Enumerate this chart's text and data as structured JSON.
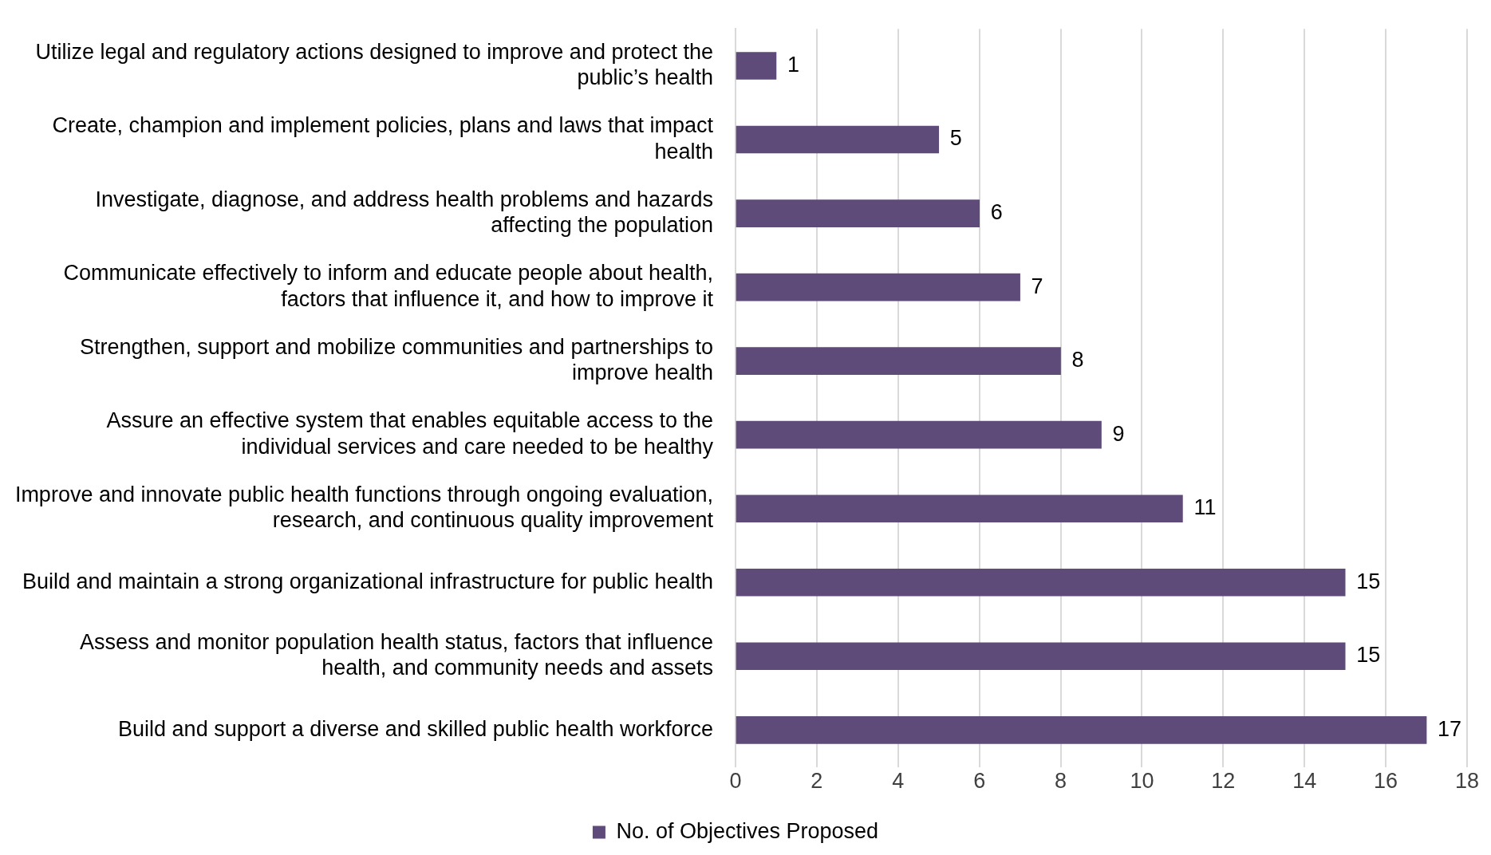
{
  "chart_data": {
    "type": "bar",
    "orientation": "horizontal",
    "categories": [
      "Utilize legal and regulatory actions designed to improve and protect the public’s health",
      "Create, champion and implement policies, plans and laws that impact health",
      "Investigate, diagnose, and address health problems and hazards affecting the population",
      "Communicate effectively to inform and educate people about health, factors that influence it, and how to improve it",
      "Strengthen, support and mobilize communities and partnerships to improve health",
      "Assure an effective system that enables equitable access to the individual services and care needed to be healthy",
      "Improve and innovate public health functions through ongoing evaluation, research, and continuous quality improvement",
      "Build and maintain a strong organizational infrastructure for public health",
      "Assess and monitor population health status, factors that influence health, and community needs and assets",
      "Build and support a diverse and skilled public health workforce"
    ],
    "series": [
      {
        "name": "No. of Objectives Proposed",
        "color": "#5f4b7a",
        "values": [
          1,
          5,
          6,
          7,
          8,
          9,
          11,
          15,
          15,
          17
        ]
      }
    ],
    "xlim": [
      0,
      18
    ],
    "xticks": [
      0,
      2,
      4,
      6,
      8,
      10,
      12,
      14,
      16,
      18
    ],
    "grid": "x",
    "legend": "bottom",
    "data_labels": true
  }
}
